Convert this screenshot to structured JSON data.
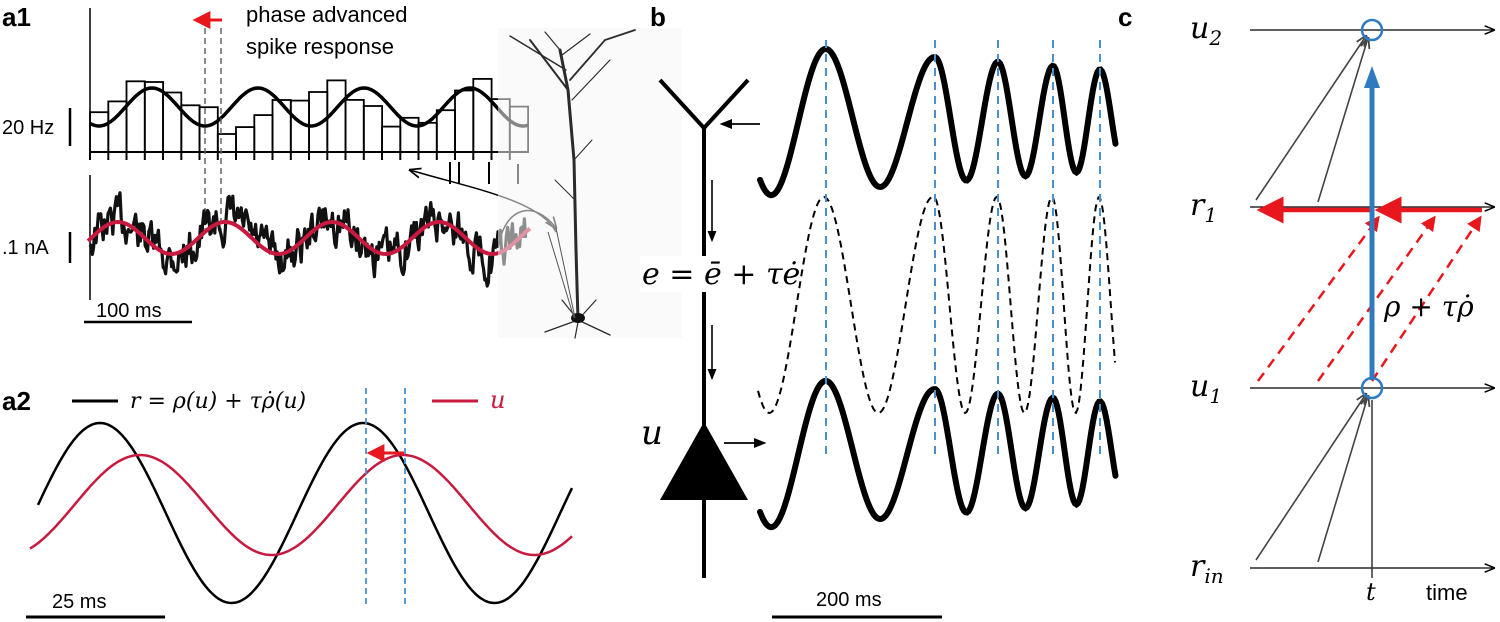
{
  "panels": {
    "a1": "a1",
    "a2": "a2",
    "b": "b",
    "c": "c"
  },
  "a1": {
    "annotation_line1": "phase advanced",
    "annotation_line2": "spike response",
    "rate_scale": "20 Hz",
    "current_scale": ".1 nA",
    "time_scale": "100 ms"
  },
  "a2": {
    "legend_r": "r = ρ(u) + τρ̇(u)",
    "legend_u": "u",
    "time_scale": "25 ms"
  },
  "b": {
    "error_eq_lhs": "e = ",
    "error_eq_ebar": "ē",
    "error_eq_rest": " + τ",
    "error_eq_edot": "ė",
    "u_label": "u",
    "time_scale": "200 ms"
  },
  "c": {
    "u2": "u",
    "u2_sub": "2",
    "r1": "r",
    "r1_sub": "1",
    "u1": "u",
    "u1_sub": "1",
    "rin": "r",
    "rin_sub": "in",
    "t_label": "t",
    "time_label": "time",
    "blue_eq": "ρ + τρ̇"
  },
  "colors": {
    "red": "#e8171d",
    "crimson": "#c8193f",
    "blue": "#2f7bbf",
    "dashed_blue": "#4a90cf",
    "dark": "#000000",
    "gray_arrow": "#444444"
  }
}
